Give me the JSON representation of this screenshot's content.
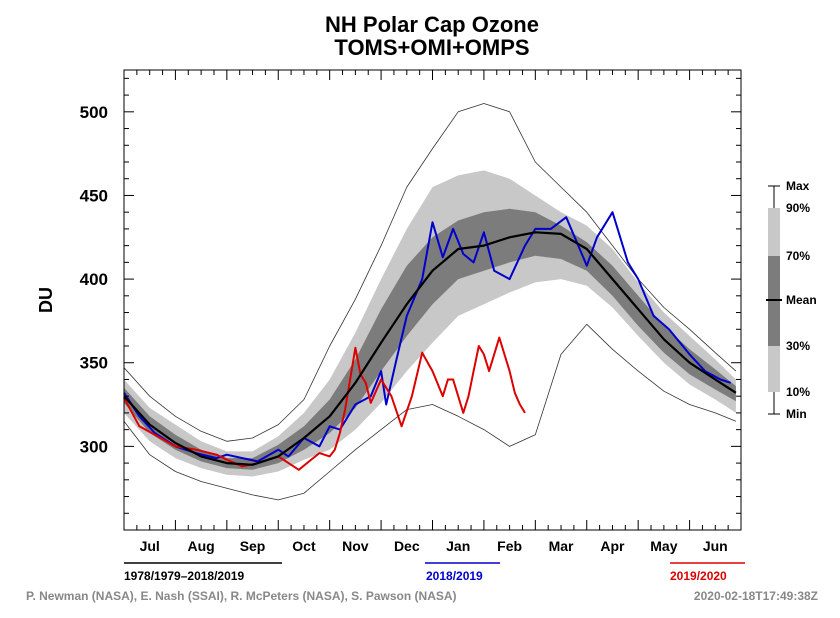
{
  "chart_data": {
    "type": "line",
    "title": "NH Polar Cap Ozone",
    "subtitle": "TOMS+OMI+OMPS",
    "ylabel": "DU",
    "xlabel": "",
    "ylim": [
      250,
      525
    ],
    "yticks": [
      300,
      350,
      400,
      450,
      500
    ],
    "months": [
      "Jul",
      "Aug",
      "Sep",
      "Oct",
      "Nov",
      "Dec",
      "Jan",
      "Feb",
      "Mar",
      "Apr",
      "May",
      "Jun"
    ],
    "x_units": "months from 1 Jul",
    "climatology": {
      "x": [
        0,
        0.5,
        1,
        1.5,
        2,
        2.5,
        3,
        3.5,
        4,
        4.5,
        5,
        5.5,
        6,
        6.5,
        7,
        7.5,
        8,
        8.5,
        9,
        9.5,
        10,
        10.5,
        11,
        11.5,
        11.9
      ],
      "max": [
        347,
        330,
        318,
        309,
        303,
        305,
        313,
        328,
        360,
        388,
        420,
        455,
        478,
        500,
        505,
        500,
        470,
        455,
        440,
        420,
        400,
        383,
        370,
        356,
        345
      ],
      "p90": [
        340,
        323,
        313,
        303,
        297,
        297,
        306,
        320,
        340,
        368,
        400,
        430,
        455,
        462,
        465,
        460,
        450,
        440,
        432,
        418,
        398,
        380,
        366,
        352,
        340
      ],
      "p70": [
        335,
        318,
        307,
        298,
        293,
        293,
        301,
        312,
        328,
        352,
        382,
        408,
        425,
        435,
        440,
        442,
        440,
        432,
        422,
        408,
        390,
        372,
        358,
        346,
        336
      ],
      "mean": [
        330,
        313,
        302,
        294,
        290,
        289,
        294,
        305,
        318,
        338,
        362,
        385,
        405,
        418,
        420,
        425,
        428,
        427,
        418,
        400,
        382,
        364,
        350,
        340,
        332
      ],
      "p30": [
        326,
        308,
        298,
        291,
        287,
        286,
        290,
        298,
        308,
        323,
        345,
        366,
        385,
        400,
        405,
        410,
        414,
        412,
        405,
        390,
        372,
        356,
        343,
        334,
        327
      ],
      "p10": [
        320,
        303,
        293,
        287,
        283,
        282,
        285,
        292,
        298,
        310,
        326,
        345,
        362,
        378,
        385,
        392,
        398,
        400,
        396,
        383,
        366,
        350,
        337,
        328,
        320
      ],
      "min": [
        315,
        295,
        285,
        279,
        275,
        271,
        268,
        272,
        285,
        298,
        310,
        322,
        325,
        318,
        310,
        300,
        307,
        355,
        373,
        358,
        345,
        333,
        325,
        320,
        315
      ]
    },
    "series": [
      {
        "name": "2018/2019",
        "color": "#0000cc",
        "x": [
          0,
          0.3,
          0.6,
          1,
          1.4,
          1.8,
          2,
          2.3,
          2.6,
          3,
          3.2,
          3.5,
          3.8,
          4,
          4.2,
          4.5,
          4.8,
          5,
          5.1,
          5.3,
          5.5,
          5.8,
          6,
          6.2,
          6.4,
          6.6,
          6.8,
          7,
          7.2,
          7.5,
          7.8,
          8,
          8.3,
          8.6,
          9,
          9.2,
          9.5,
          9.8,
          10,
          10.3,
          10.6,
          11,
          11.3,
          11.6,
          11.8
        ],
        "y": [
          332,
          318,
          308,
          300,
          296,
          293,
          295,
          293,
          291,
          298,
          294,
          305,
          300,
          312,
          310,
          325,
          330,
          345,
          325,
          352,
          378,
          400,
          434,
          413,
          430,
          415,
          410,
          428,
          405,
          400,
          420,
          430,
          430,
          437,
          408,
          425,
          440,
          410,
          400,
          378,
          370,
          355,
          345,
          340,
          338
        ]
      },
      {
        "name": "2019/2020",
        "color": "#dd0000",
        "x": [
          0,
          0.3,
          0.6,
          1,
          1.4,
          1.8,
          2,
          2.3,
          2.6,
          3,
          3.2,
          3.4,
          3.6,
          3.8,
          4,
          4.1,
          4.2,
          4.3,
          4.5,
          4.6,
          4.7,
          4.8,
          5,
          5.2,
          5.4,
          5.6,
          5.8,
          6,
          6.2,
          6.3,
          6.4,
          6.6,
          6.7,
          6.8,
          6.9,
          7,
          7.1,
          7.3,
          7.5,
          7.6,
          7.7,
          7.8
        ],
        "y": [
          329,
          312,
          307,
          300,
          298,
          295,
          292,
          288,
          290,
          294,
          290,
          286,
          291,
          296,
          294,
          298,
          308,
          322,
          359,
          343,
          338,
          326,
          340,
          330,
          312,
          330,
          356,
          345,
          330,
          340,
          340,
          320,
          330,
          345,
          360,
          355,
          345,
          365,
          345,
          332,
          325,
          320
        ]
      }
    ],
    "legend": {
      "labels": [
        "Max",
        "90%",
        "70%",
        "Mean",
        "30%",
        "10%",
        "Min"
      ],
      "placement": "right"
    },
    "period_labels": {
      "climatology": "1978/1979–2018/2019",
      "series_a": "2018/2019",
      "series_b": "2019/2020"
    },
    "colors": {
      "band_outer": "#c8c8c8",
      "band_mid": "#a8a8a8",
      "band_inner": "#7c7c7c",
      "mean_line": "#000000"
    },
    "credits": "P. Newman (NASA), E. Nash (SSAI), R. McPeters (NASA), S. Pawson (NASA)",
    "timestamp": "2020-02-18T17:49:38Z"
  }
}
